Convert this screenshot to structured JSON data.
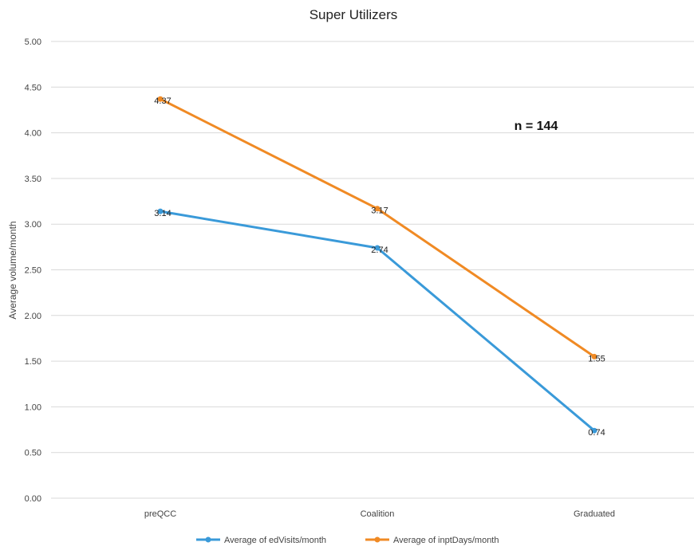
{
  "chart_data": {
    "type": "line",
    "title": "Super Utilizers",
    "xlabel": "",
    "ylabel": "Average volume/month",
    "categories": [
      "preQCC",
      "Coalition",
      "Graduated"
    ],
    "ylim": [
      0,
      5
    ],
    "yticks": [
      "0.00",
      "0.50",
      "1.00",
      "1.50",
      "2.00",
      "2.50",
      "3.00",
      "3.50",
      "4.00",
      "4.50",
      "5.00"
    ],
    "grid": true,
    "legend_position": "bottom",
    "annotation": "n = 144",
    "series": [
      {
        "name": "Average of edVisits/month",
        "color": "#3a9ad9",
        "values": [
          3.14,
          2.74,
          0.74
        ],
        "labels": [
          "3.14",
          "2.74",
          "0.74"
        ]
      },
      {
        "name": "Average of inptDays/month",
        "color": "#f08a24",
        "values": [
          4.37,
          3.17,
          1.55
        ],
        "labels": [
          "4.37",
          "3.17",
          "1.55"
        ]
      }
    ]
  }
}
